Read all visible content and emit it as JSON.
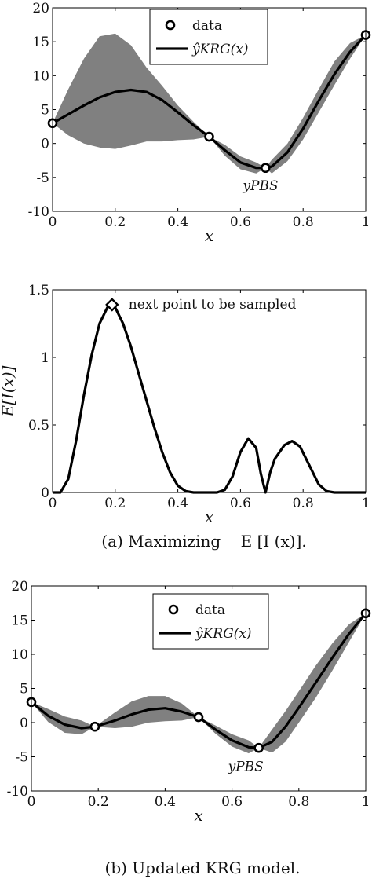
{
  "chart_data": [
    {
      "type": "line",
      "xlabel": "x",
      "ylabel": "",
      "xlim": [
        0,
        1
      ],
      "ylim": [
        -10,
        20
      ],
      "xticks": [
        "0",
        "0.2",
        "0.4",
        "0.6",
        "0.8",
        "1"
      ],
      "yticks": [
        "-10",
        "-5",
        "0",
        "5",
        "10",
        "15",
        "20"
      ],
      "legend": {
        "placement": "top-center",
        "entries": [
          "data",
          "ŷKRG(x)"
        ]
      },
      "annotation": {
        "text": "yPBS",
        "x": 0.62,
        "y": -5.5
      },
      "series": [
        {
          "name": "data",
          "style": "markers",
          "x": [
            0,
            0.5,
            0.68,
            1
          ],
          "y": [
            3,
            1,
            -3.6,
            16
          ]
        },
        {
          "name": "ŷKRG(x)",
          "style": "line",
          "x": [
            0,
            0.05,
            0.1,
            0.15,
            0.2,
            0.25,
            0.3,
            0.35,
            0.4,
            0.45,
            0.5,
            0.55,
            0.6,
            0.65,
            0.68,
            0.7,
            0.75,
            0.8,
            0.85,
            0.9,
            0.95,
            1
          ],
          "y": [
            3,
            4.3,
            5.6,
            6.8,
            7.6,
            7.9,
            7.6,
            6.4,
            4.6,
            2.7,
            1,
            -1,
            -2.8,
            -3.6,
            -3.6,
            -3.4,
            -1.3,
            2.2,
            6.3,
            10.2,
            13.5,
            16
          ]
        },
        {
          "name": "confidence band",
          "style": "band",
          "x": [
            0,
            0.05,
            0.1,
            0.15,
            0.2,
            0.25,
            0.3,
            0.35,
            0.4,
            0.45,
            0.5,
            0.55,
            0.6,
            0.65,
            0.68,
            0.7,
            0.75,
            0.8,
            0.85,
            0.9,
            0.95,
            1
          ],
          "lower": [
            3,
            1.2,
            0,
            -0.6,
            -0.8,
            -0.3,
            0.3,
            0.3,
            0.5,
            0.6,
            1,
            -1.8,
            -3.8,
            -4.4,
            -3.6,
            -4.4,
            -2.6,
            0.6,
            4.6,
            8.6,
            12.5,
            16
          ],
          "upper": [
            3,
            8,
            12.5,
            15.8,
            16.2,
            14.5,
            11.2,
            8.5,
            5.6,
            3.2,
            1,
            -0.2,
            -1.9,
            -2.8,
            -3.6,
            -2.4,
            0,
            3.8,
            8,
            12.1,
            14.8,
            16
          ]
        }
      ]
    },
    {
      "type": "line",
      "xlabel": "x",
      "ylabel": "E[I(x)]",
      "xlim": [
        0,
        1
      ],
      "ylim": [
        0,
        1.5
      ],
      "xticks": [
        "0",
        "0.2",
        "0.4",
        "0.6",
        "0.8",
        "1"
      ],
      "yticks": [
        "0",
        "0.5",
        "1",
        "1.5"
      ],
      "annotation": {
        "text": "next point to be sampled",
        "x": 0.19,
        "y": 1.39
      },
      "series": [
        {
          "name": "",
          "style": "line",
          "x": [
            0,
            0.025,
            0.05,
            0.075,
            0.1,
            0.125,
            0.15,
            0.175,
            0.19,
            0.2,
            0.225,
            0.25,
            0.275,
            0.3,
            0.325,
            0.35,
            0.375,
            0.4,
            0.425,
            0.45,
            0.475,
            0.5,
            0.525,
            0.55,
            0.575,
            0.6,
            0.625,
            0.65,
            0.665,
            0.68,
            0.695,
            0.71,
            0.74,
            0.765,
            0.79,
            0.82,
            0.85,
            0.875,
            0.9,
            1
          ],
          "y": [
            0,
            0,
            0.1,
            0.38,
            0.72,
            1.02,
            1.25,
            1.37,
            1.39,
            1.37,
            1.25,
            1.08,
            0.88,
            0.68,
            0.48,
            0.3,
            0.15,
            0.05,
            0.01,
            0,
            0,
            0,
            0,
            0.02,
            0.12,
            0.3,
            0.4,
            0.33,
            0.14,
            0,
            0.15,
            0.25,
            0.35,
            0.38,
            0.34,
            0.2,
            0.06,
            0.01,
            0,
            0
          ]
        },
        {
          "name": "",
          "style": "diamond",
          "x": [
            0.19
          ],
          "y": [
            1.39
          ]
        }
      ]
    },
    {
      "type": "line",
      "xlabel": "x",
      "ylabel": "",
      "xlim": [
        0,
        1
      ],
      "ylim": [
        -10,
        20
      ],
      "xticks": [
        "0",
        "0.2",
        "0.4",
        "0.6",
        "0.8",
        "1"
      ],
      "yticks": [
        "-10",
        "-5",
        "0",
        "5",
        "10",
        "15",
        "20"
      ],
      "legend": {
        "placement": "top-center",
        "entries": [
          "data",
          "ŷKRG(x)"
        ]
      },
      "annotation": {
        "text": "yPBS",
        "x": 0.6,
        "y": -5.7
      },
      "series": [
        {
          "name": "data",
          "style": "markers",
          "x": [
            0,
            0.19,
            0.5,
            0.68,
            1
          ],
          "y": [
            3,
            -0.6,
            0.8,
            -3.7,
            16
          ]
        },
        {
          "name": "ŷKRG(x)",
          "style": "line",
          "x": [
            0,
            0.05,
            0.1,
            0.15,
            0.19,
            0.25,
            0.3,
            0.35,
            0.4,
            0.45,
            0.5,
            0.55,
            0.6,
            0.65,
            0.68,
            0.72,
            0.76,
            0.8,
            0.85,
            0.9,
            0.95,
            1
          ],
          "y": [
            3,
            1,
            -0.3,
            -0.8,
            -0.6,
            0.3,
            1.2,
            1.9,
            2.1,
            1.6,
            0.8,
            -1,
            -2.6,
            -3.6,
            -3.7,
            -2.8,
            -0.6,
            2.2,
            5.8,
            9.5,
            13,
            16
          ]
        },
        {
          "name": "confidence band",
          "style": "band",
          "x": [
            0,
            0.05,
            0.1,
            0.15,
            0.19,
            0.25,
            0.3,
            0.35,
            0.4,
            0.45,
            0.5,
            0.55,
            0.6,
            0.65,
            0.68,
            0.72,
            0.76,
            0.8,
            0.85,
            0.9,
            0.95,
            1
          ],
          "lower": [
            3,
            0.1,
            -1.5,
            -1.7,
            -0.6,
            -0.8,
            -0.6,
            0,
            0.2,
            0.3,
            0.8,
            -1.6,
            -3.5,
            -4.5,
            -3.7,
            -4.4,
            -2.8,
            0,
            3.6,
            7.6,
            11.8,
            16
          ],
          "upper": [
            3,
            2,
            0.9,
            0.3,
            -0.6,
            1.5,
            3.1,
            3.9,
            3.9,
            2.8,
            0.8,
            -0.4,
            -1.7,
            -2.6,
            -3.7,
            -1,
            1.7,
            4.6,
            8.3,
            11.6,
            14.4,
            16
          ]
        }
      ]
    }
  ],
  "captions": {
    "a": "(a) Maximizing    E [I (x)].",
    "b": "(b) Updated KRG model."
  }
}
